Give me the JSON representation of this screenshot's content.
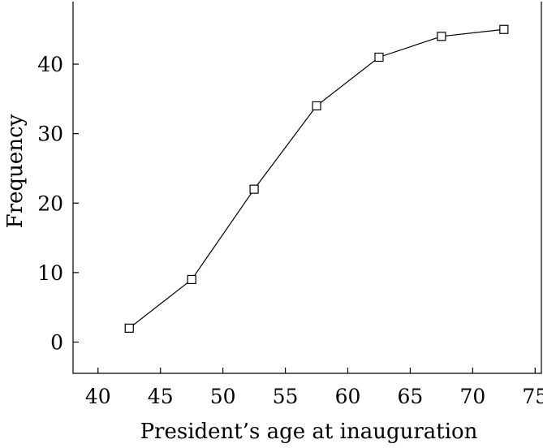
{
  "chart_data": {
    "type": "line",
    "title": "",
    "xlabel": "President’s age at inauguration",
    "ylabel": "Frequency",
    "xlim": [
      38,
      75.5
    ],
    "ylim": [
      -4.5,
      49
    ],
    "xticks": [
      40,
      45,
      50,
      55,
      60,
      65,
      70,
      75
    ],
    "yticks": [
      0,
      10,
      20,
      30,
      40
    ],
    "grid": false,
    "legend": "none",
    "marker": "square",
    "series": [
      {
        "x": [
          42.5,
          47.5,
          52.5,
          57.5,
          62.5,
          67.5,
          72.5
        ],
        "y": [
          2,
          9,
          22,
          34,
          41,
          44,
          45
        ]
      }
    ]
  }
}
